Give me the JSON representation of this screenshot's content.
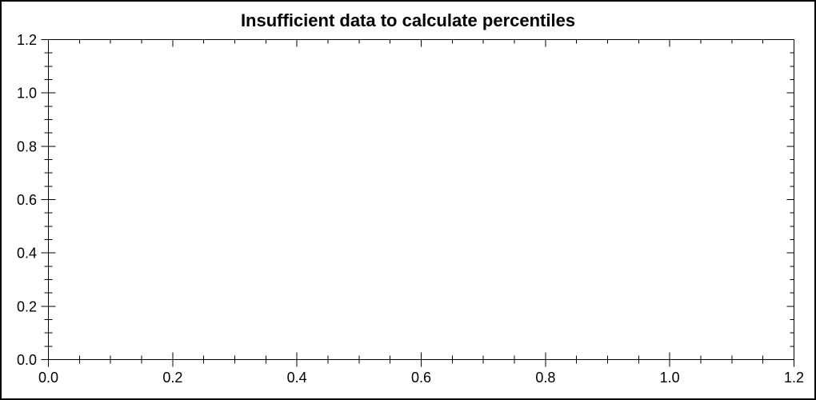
{
  "window": {
    "background_color": "#ffffff",
    "border_color": "#000000"
  },
  "chart_data": {
    "type": "scatter",
    "title": "Insufficient data to calculate percentiles",
    "xlabel": "",
    "ylabel": "",
    "xlim": [
      0,
      1.2
    ],
    "ylim": [
      0,
      1.2
    ],
    "x_major_ticks": [
      0,
      0.2,
      0.4,
      0.6,
      0.8,
      1.0,
      1.2
    ],
    "y_major_ticks": [
      0,
      0.2,
      0.4,
      0.6,
      0.8,
      1.0,
      1.2
    ],
    "x_tick_labels": [
      "0.0",
      "0.2",
      "0.4",
      "0.6",
      "0.8",
      "1.0",
      "1.2"
    ],
    "y_tick_labels": [
      "0.0",
      "0.2",
      "0.4",
      "0.6",
      "0.8",
      "1.0",
      "1.2"
    ],
    "minor_tick_interval": 0.05,
    "series": [],
    "grid": false,
    "legend": false,
    "axis_color": "#000000",
    "text_color": "#000000",
    "tick_style": "major ticks cross left/bottom spines, inward-only on top/right spines"
  }
}
